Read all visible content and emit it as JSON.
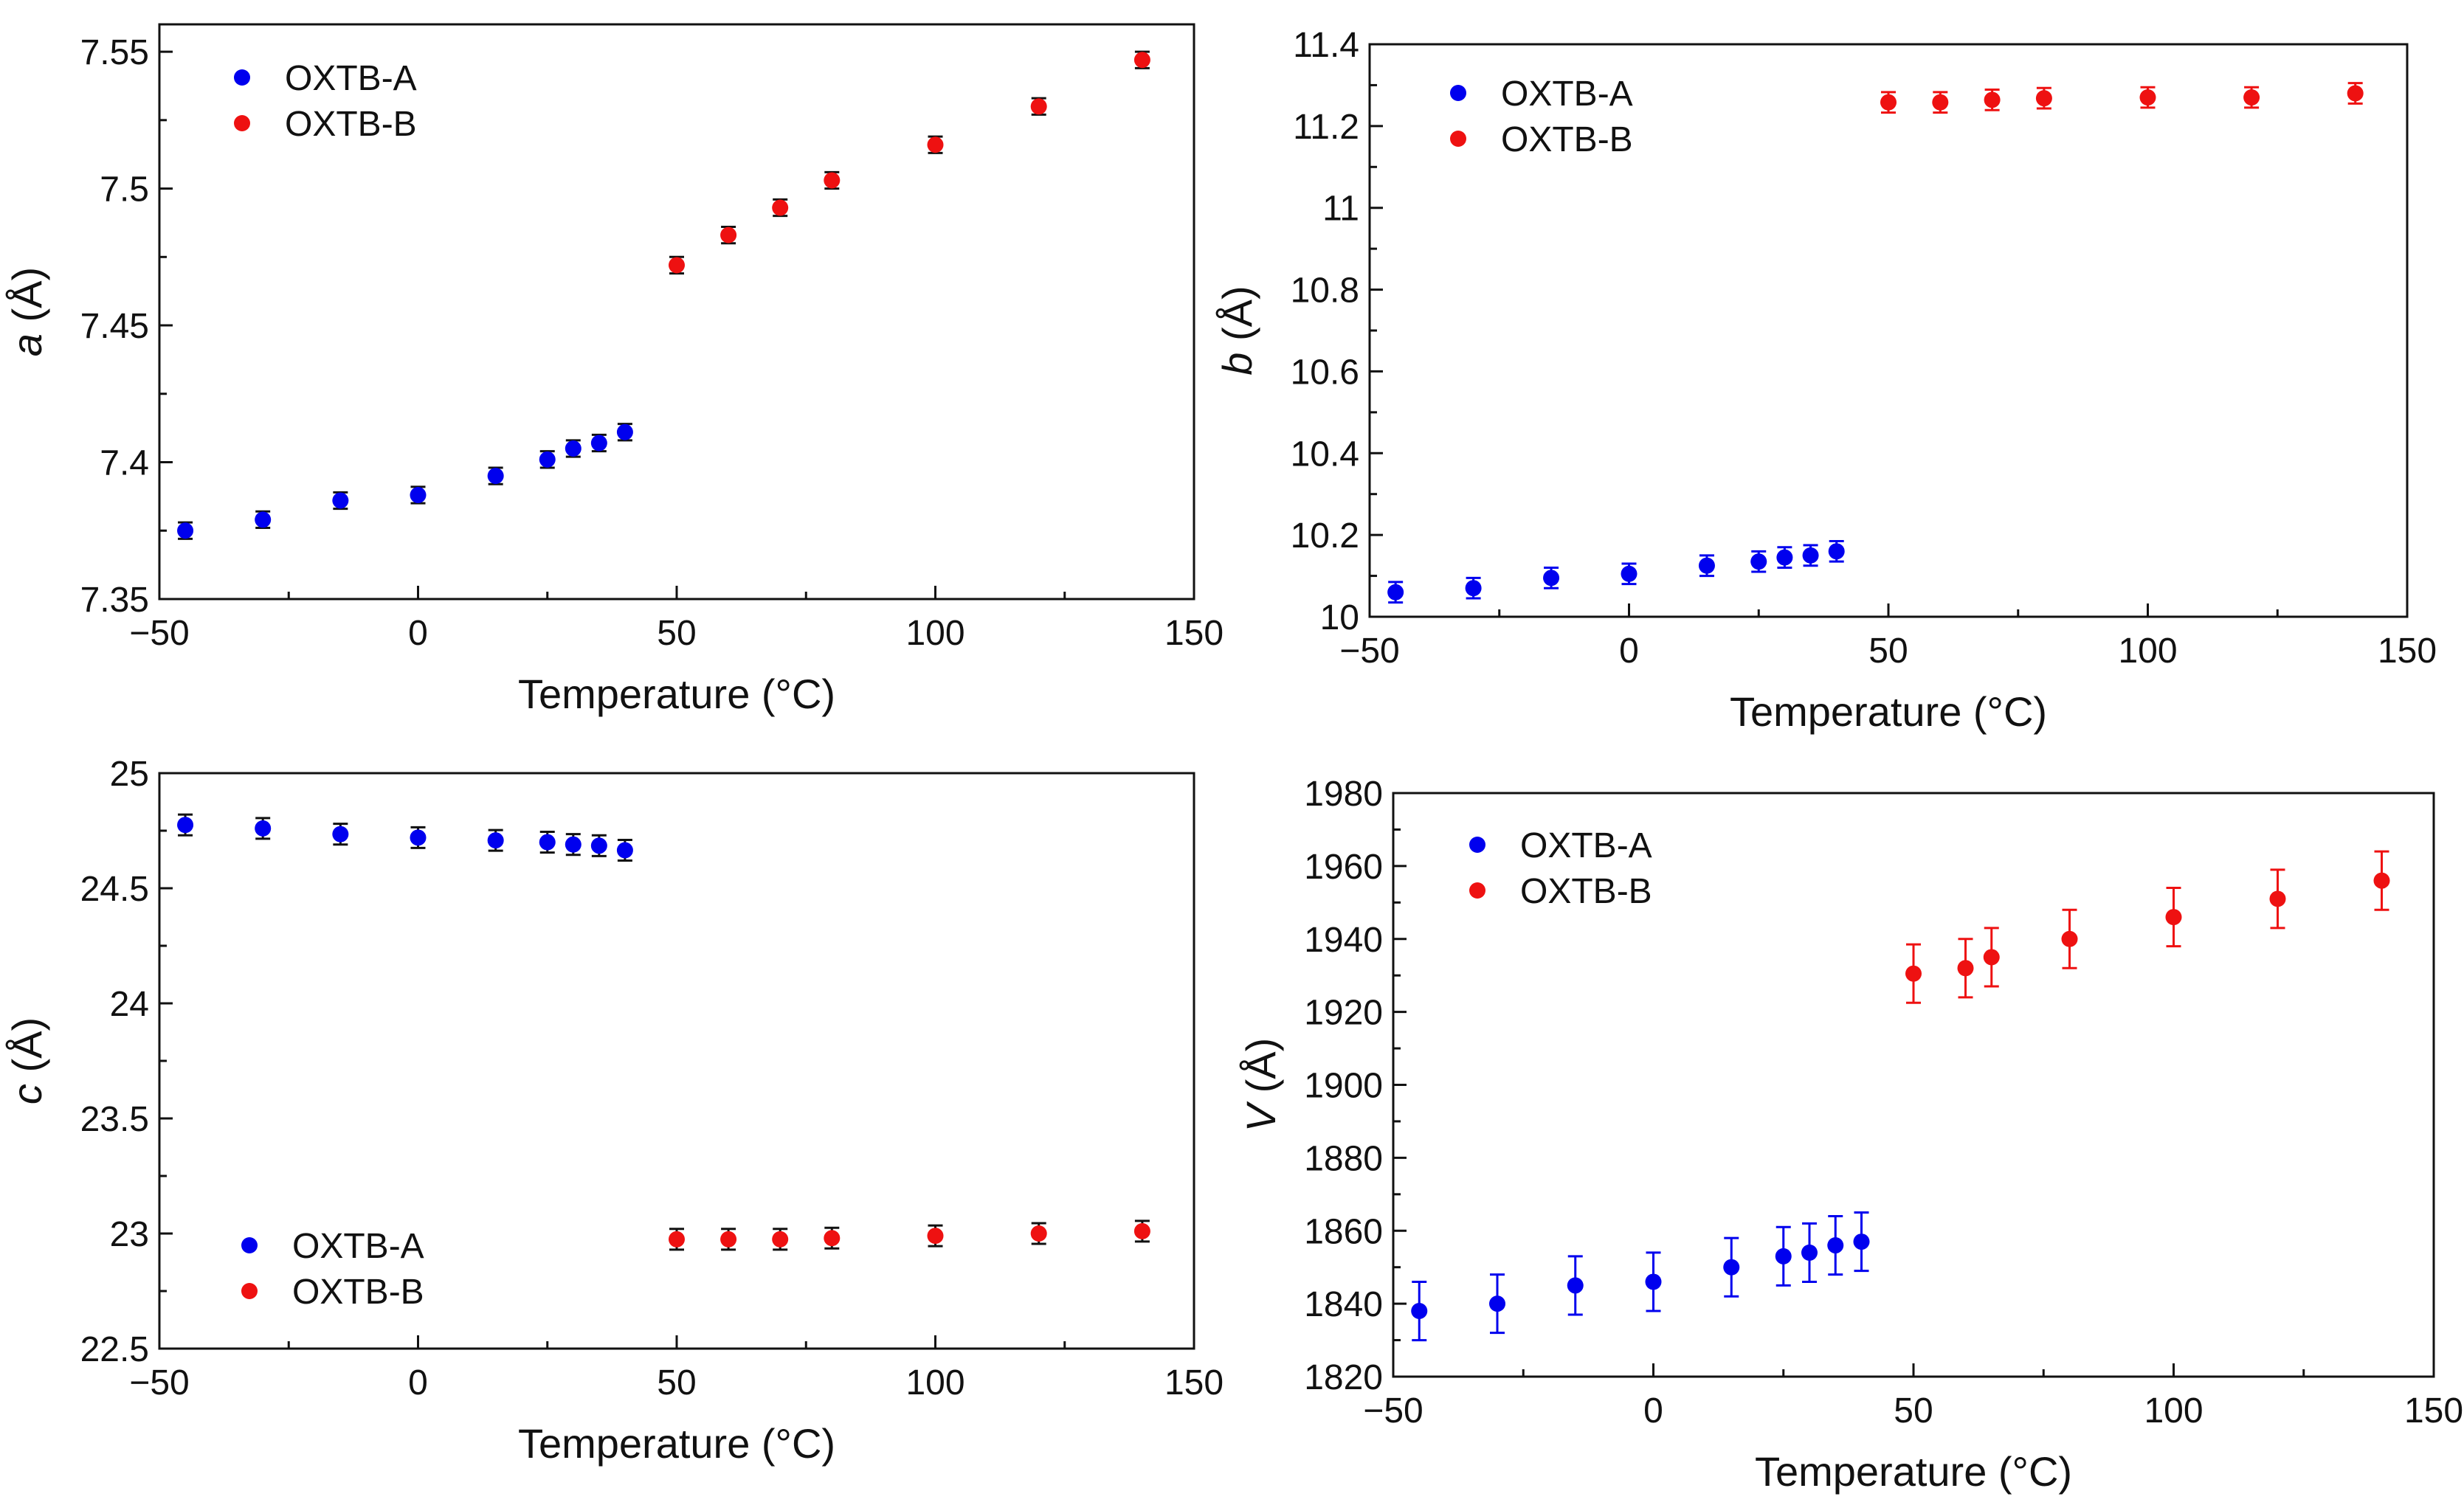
{
  "chart_data": [
    {
      "type": "scatter",
      "panel": "a",
      "title": "",
      "xlabel": "Temperature (°C)",
      "ylabel_symbol": "a",
      "ylabel_unit": "(Å)",
      "xlim": [
        -50,
        150
      ],
      "ylim": [
        7.35,
        7.56
      ],
      "xticks": [
        -50,
        0,
        50,
        100,
        150
      ],
      "xtick_labels": [
        "−50",
        "0",
        "50",
        "100",
        "150"
      ],
      "yticks": [
        7.35,
        7.4,
        7.45,
        7.5,
        7.55
      ],
      "ytick_labels": [
        "7.35",
        "7.4",
        "7.45",
        "7.5",
        "7.55"
      ],
      "legend_position": "top-left",
      "series": [
        {
          "name": "OXTB-A",
          "color": "#0000ee",
          "errorbar_color": "#111111",
          "x": [
            -45,
            -30,
            -15,
            0,
            15,
            25,
            30,
            35,
            40
          ],
          "y": [
            7.375,
            7.379,
            7.386,
            7.388,
            7.395,
            7.401,
            7.405,
            7.407,
            7.411
          ],
          "err": [
            0.003,
            0.003,
            0.003,
            0.003,
            0.003,
            0.003,
            0.003,
            0.003,
            0.003
          ]
        },
        {
          "name": "OXTB-B",
          "color": "#ee1111",
          "errorbar_color": "#111111",
          "x": [
            50,
            60,
            70,
            80,
            100,
            120,
            140
          ],
          "y": [
            7.472,
            7.483,
            7.493,
            7.503,
            7.516,
            7.53,
            7.547
          ],
          "err": [
            0.003,
            0.003,
            0.003,
            0.003,
            0.003,
            0.003,
            0.003
          ]
        }
      ]
    },
    {
      "type": "scatter",
      "panel": "b",
      "title": "",
      "xlabel": "Temperature (°C)",
      "ylabel_symbol": "b",
      "ylabel_unit": "(Å)",
      "xlim": [
        -50,
        150
      ],
      "ylim": [
        10,
        11.4
      ],
      "xticks": [
        -50,
        0,
        50,
        100,
        150
      ],
      "xtick_labels": [
        "−50",
        "0",
        "50",
        "100",
        "150"
      ],
      "yticks": [
        10,
        10.2,
        10.4,
        10.6,
        10.8,
        11,
        11.2,
        11.4
      ],
      "ytick_labels": [
        "10",
        "10.2",
        "10.4",
        "10.6",
        "10.8",
        "11",
        "11.2",
        "11.4"
      ],
      "legend_position": "top-left",
      "series": [
        {
          "name": "OXTB-A",
          "color": "#0000ee",
          "errorbar_color": "#0000ee",
          "x": [
            -45,
            -30,
            -15,
            0,
            15,
            25,
            30,
            35,
            40
          ],
          "y": [
            10.06,
            10.07,
            10.095,
            10.105,
            10.125,
            10.135,
            10.145,
            10.15,
            10.16
          ],
          "err": [
            0.025,
            0.025,
            0.025,
            0.025,
            0.025,
            0.025,
            0.025,
            0.025,
            0.025
          ]
        },
        {
          "name": "OXTB-B",
          "color": "#ee1111",
          "errorbar_color": "#ee1111",
          "x": [
            50,
            60,
            70,
            80,
            100,
            120,
            140
          ],
          "y": [
            11.258,
            11.258,
            11.264,
            11.268,
            11.27,
            11.27,
            11.28
          ],
          "err": [
            0.025,
            0.025,
            0.025,
            0.025,
            0.025,
            0.025,
            0.025
          ]
        }
      ]
    },
    {
      "type": "scatter",
      "panel": "c",
      "title": "",
      "xlabel": "Temperature (°C)",
      "ylabel_symbol": "c",
      "ylabel_unit": "(Å)",
      "xlim": [
        -50,
        150
      ],
      "ylim": [
        22.5,
        25
      ],
      "xticks": [
        -50,
        0,
        50,
        100,
        150
      ],
      "xtick_labels": [
        "−50",
        "0",
        "50",
        "100",
        "150"
      ],
      "yticks": [
        22.5,
        23,
        23.5,
        24,
        24.5,
        25
      ],
      "ytick_labels": [
        "22.5",
        "23",
        "23.5",
        "24",
        "24.5",
        "25"
      ],
      "legend_position": "bottom-left",
      "series": [
        {
          "name": "OXTB-A",
          "color": "#0000ee",
          "errorbar_color": "#111111",
          "x": [
            -45,
            -30,
            -15,
            0,
            15,
            25,
            30,
            35,
            40
          ],
          "y": [
            24.775,
            24.76,
            24.735,
            24.72,
            24.708,
            24.7,
            24.69,
            24.685,
            24.665
          ],
          "err": [
            0.045,
            0.045,
            0.045,
            0.045,
            0.045,
            0.045,
            0.045,
            0.045,
            0.045
          ]
        },
        {
          "name": "OXTB-B",
          "color": "#ee1111",
          "errorbar_color": "#111111",
          "x": [
            50,
            60,
            70,
            80,
            100,
            120,
            140
          ],
          "y": [
            22.975,
            22.975,
            22.975,
            22.98,
            22.99,
            23.0,
            23.01
          ],
          "err": [
            0.045,
            0.045,
            0.045,
            0.045,
            0.045,
            0.045,
            0.045
          ]
        }
      ]
    },
    {
      "type": "scatter",
      "panel": "V",
      "title": "",
      "xlabel": "Temperature (°C)",
      "ylabel_symbol": "V",
      "ylabel_unit": "(Å)",
      "xlim": [
        -50,
        150
      ],
      "ylim": [
        1820,
        1980
      ],
      "xticks": [
        -50,
        0,
        50,
        100,
        150
      ],
      "xtick_labels": [
        "−50",
        "0",
        "50",
        "100",
        "150"
      ],
      "yticks": [
        1820,
        1840,
        1860,
        1880,
        1900,
        1920,
        1940,
        1960,
        1980
      ],
      "ytick_labels": [
        "1820",
        "1840",
        "1860",
        "1880",
        "1900",
        "1920",
        "1940",
        "1960",
        "1980"
      ],
      "legend_position": "top-left",
      "series": [
        {
          "name": "OXTB-A",
          "color": "#0000ee",
          "errorbar_color": "#0000ee",
          "x": [
            -45,
            -30,
            -15,
            0,
            15,
            25,
            30,
            35,
            40
          ],
          "y": [
            1838,
            1840,
            1845,
            1846,
            1850,
            1853,
            1854,
            1856,
            1857
          ],
          "err": [
            8,
            8,
            8,
            8,
            8,
            8,
            8,
            8,
            8
          ]
        },
        {
          "name": "OXTB-B",
          "color": "#ee1111",
          "errorbar_color": "#ee1111",
          "x": [
            50,
            60,
            65,
            80,
            100,
            120,
            140
          ],
          "y": [
            1930.5,
            1932,
            1935,
            1940,
            1946,
            1951,
            1956
          ],
          "err": [
            8,
            8,
            8,
            8,
            8,
            8,
            8
          ]
        }
      ]
    }
  ]
}
